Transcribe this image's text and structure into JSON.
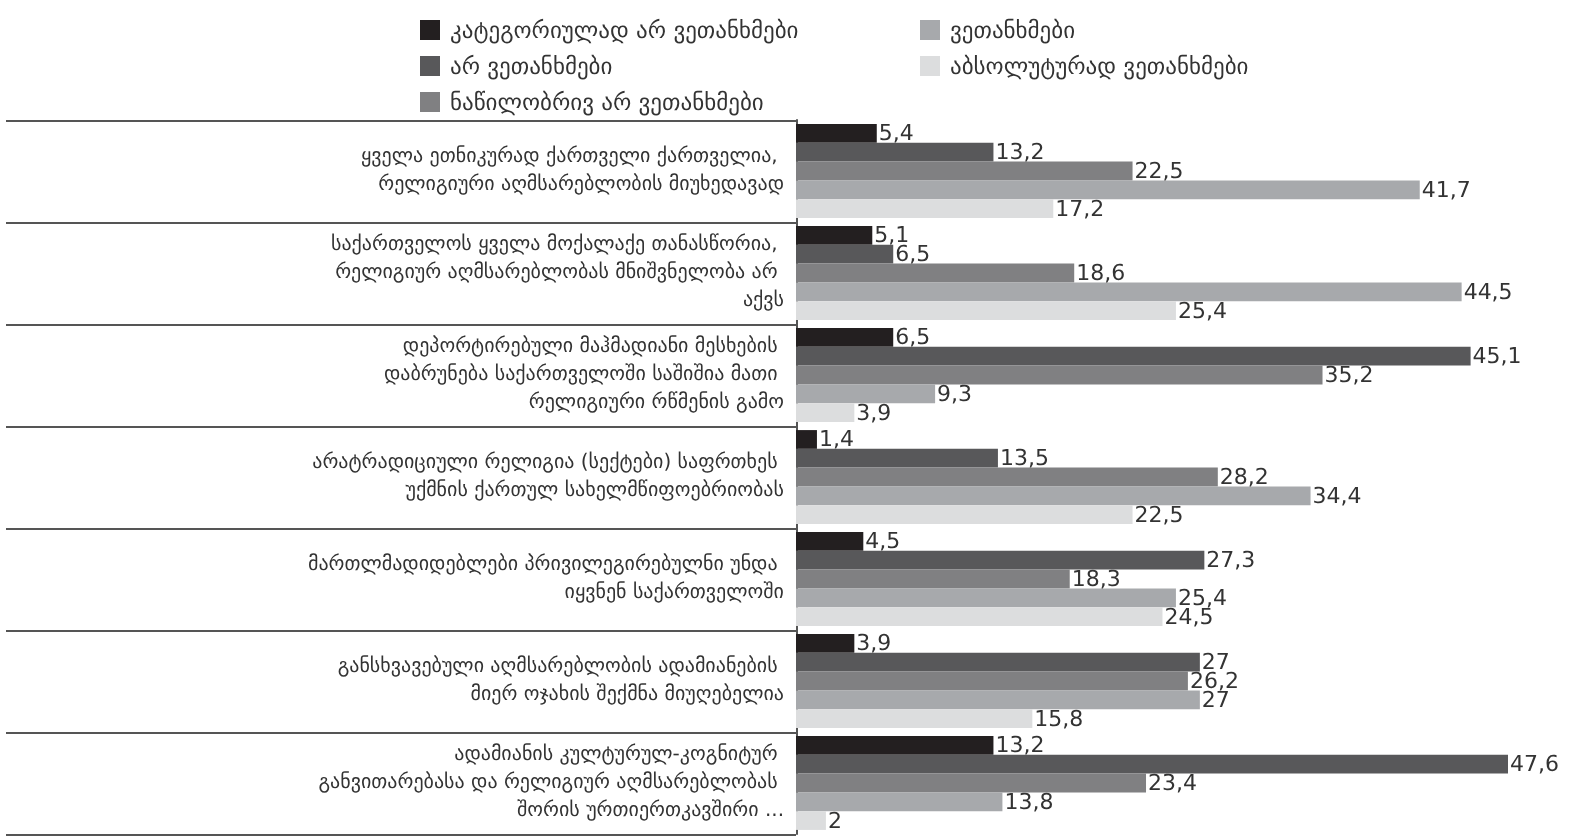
{
  "chart_data": {
    "type": "bar",
    "orientation": "horizontal",
    "legend": "top",
    "categories": [
      "ყველა ეთნიკურად ქართველი ქართველია, რელიგიური აღმსარებლობის მიუხედავად",
      "საქართველოს ყველა მოქალაქე თანასწორია, რელიგიურ აღმსარებლობას მნიშვნელობა არ აქვს",
      "დეპორტირებული მაჰმადიანი მესხების დაბრუნება საქართველოში საშიშია მათი რელიგიური რწმენის გამო",
      "არატრადიციული რელიგია (სექტები) საფრთხეს უქმნის ქართულ სახელმწიფოებრიობას",
      "მართლმადიდებლები პრივილეგირებულნი უნდა იყვნენ საქართველოში",
      "განსხვავებული აღმსარებლობის ადამიანების მიერ ოჯახის შექმნა მიუღებელია",
      "ადამიანის კულტურულ-კოგნიტურ განვითარებასა და რელიგიურ აღმსარებლობას შორის ურთიერთკავშირი ..."
    ],
    "series": [
      {
        "name": "კატეგორიულად არ ვეთანხმები",
        "color": "#231f20",
        "values": [
          5.4,
          5.1,
          6.5,
          1.4,
          4.5,
          3.9,
          13.2
        ],
        "value_labels": [
          "5,4",
          "5,1",
          "6,5",
          "1,4",
          "4,5",
          "3,9",
          "13,2"
        ]
      },
      {
        "name": "არ ვეთანხმები",
        "color": "#58585a",
        "values": [
          13.2,
          6.5,
          45.1,
          13.5,
          27.3,
          27,
          47.6
        ],
        "value_labels": [
          "13,2",
          "6,5",
          "45,1",
          "13,5",
          "27,3",
          "27",
          "47,6"
        ]
      },
      {
        "name": "ნაწილობრივ არ ვეთანხმები",
        "color": "#808082",
        "values": [
          22.5,
          18.6,
          35.2,
          28.2,
          18.3,
          26.2,
          23.4
        ],
        "value_labels": [
          "22,5",
          "18,6",
          "35,2",
          "28,2",
          "18,3",
          "26,2",
          "23,4"
        ]
      },
      {
        "name": "ვეთანხმები",
        "color": "#a7a9ac",
        "values": [
          41.7,
          44.5,
          9.3,
          34.4,
          25.4,
          27,
          13.8
        ],
        "value_labels": [
          "41,7",
          "44,5",
          "9,3",
          "34,4",
          "25,4",
          "27",
          "13,8"
        ]
      },
      {
        "name": "აბსოლუტურად ვეთანხმები",
        "color": "#dcddde",
        "values": [
          17.2,
          25.4,
          3.9,
          22.5,
          24.5,
          15.8,
          2
        ],
        "value_labels": [
          "17,2",
          "25,4",
          "3,9",
          "22,5",
          "24,5",
          "15,8",
          "2"
        ]
      }
    ]
  }
}
